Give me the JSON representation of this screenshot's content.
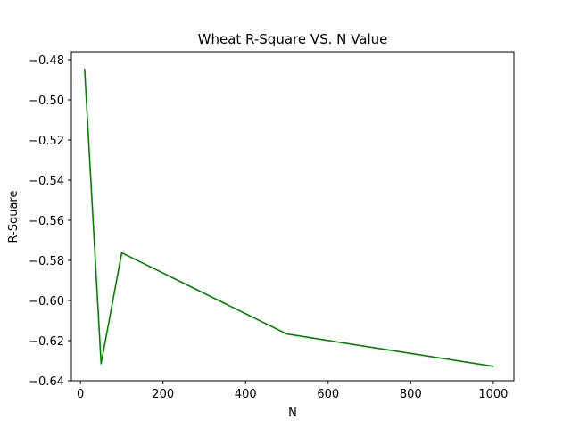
{
  "chart_data": {
    "type": "line",
    "title": "Wheat R-Square VS. N Value",
    "xlabel": "N",
    "ylabel": "R-Square",
    "xlim": [
      -22,
      1050
    ],
    "ylim": [
      -0.64,
      -0.476
    ],
    "xticks": [
      0,
      200,
      400,
      600,
      800,
      1000
    ],
    "yticks": [
      -0.64,
      -0.62,
      -0.6,
      -0.58,
      -0.56,
      -0.54,
      -0.52,
      -0.5,
      -0.48
    ],
    "grid": false,
    "series": [
      {
        "color": "#008000",
        "x": [
          10,
          50,
          100,
          500,
          1000
        ],
        "y": [
          -0.4845,
          -0.6315,
          -0.5762,
          -0.6167,
          -0.6328
        ]
      }
    ]
  }
}
